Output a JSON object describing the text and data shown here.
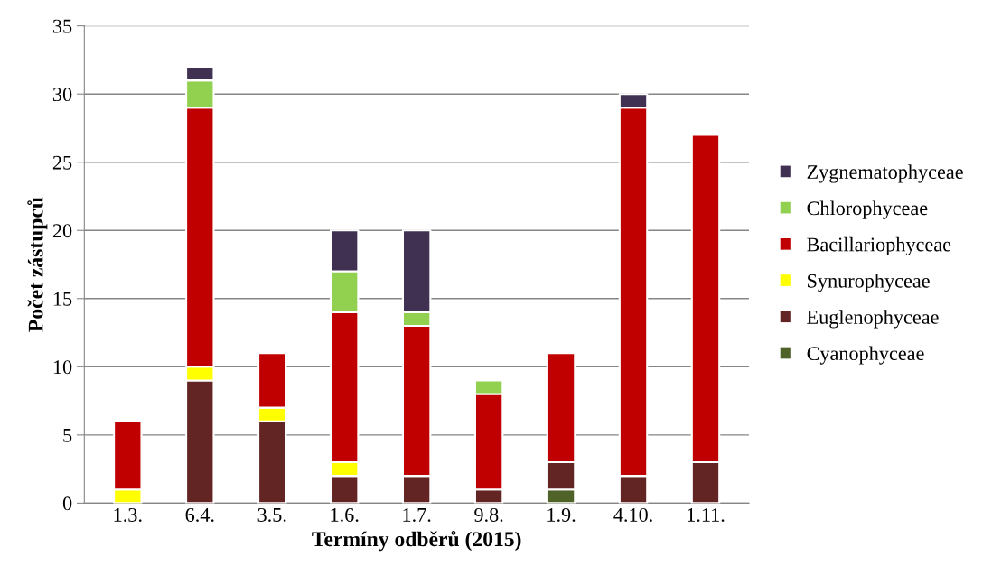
{
  "chart_data": {
    "type": "bar",
    "stacked": true,
    "xlabel": "Termíny odběrů (2015)",
    "ylabel": "Počet zástupců",
    "categories": [
      "1.3.",
      "6.4.",
      "3.5.",
      "1.6.",
      "1.7.",
      "9.8.",
      "1.9.",
      "4.10.",
      "1.11."
    ],
    "series": [
      {
        "name": "Cyanophyceae",
        "color": "#4f6228",
        "values": [
          0,
          0,
          0,
          0,
          0,
          0,
          1,
          0,
          0
        ]
      },
      {
        "name": "Euglenophyceae",
        "color": "#632523",
        "values": [
          0,
          9,
          6,
          2,
          2,
          1,
          2,
          2,
          3
        ]
      },
      {
        "name": "Synurophyceae",
        "color": "#ffff00",
        "values": [
          1,
          1,
          1,
          1,
          0,
          0,
          0,
          0,
          0
        ]
      },
      {
        "name": "Bacillariophyceae",
        "color": "#c00000",
        "values": [
          5,
          19,
          4,
          11,
          11,
          7,
          8,
          27,
          24
        ]
      },
      {
        "name": "Chlorophyceae",
        "color": "#92d050",
        "values": [
          0,
          2,
          0,
          3,
          1,
          1,
          0,
          0,
          0
        ]
      },
      {
        "name": "Zygnematophyceae",
        "color": "#403152",
        "values": [
          0,
          1,
          0,
          3,
          6,
          0,
          0,
          1,
          0
        ]
      }
    ],
    "ylim": [
      0,
      35
    ],
    "yticks": [
      0,
      5,
      10,
      15,
      20,
      25,
      30,
      35
    ],
    "grid": "y",
    "legend": "right"
  }
}
